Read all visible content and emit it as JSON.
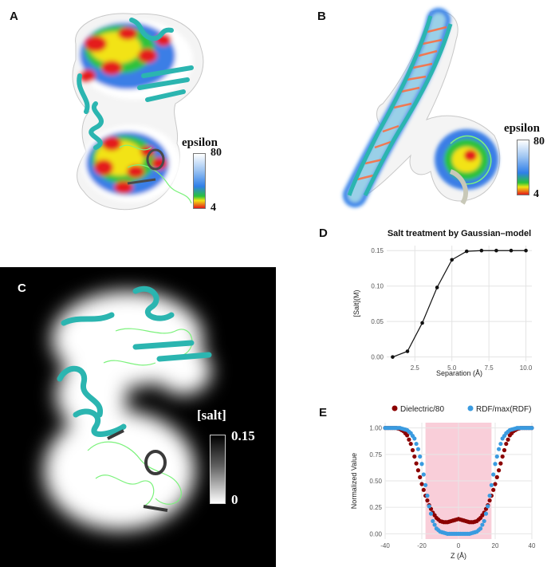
{
  "panel_labels": {
    "a": "A",
    "b": "B",
    "c": "C",
    "d": "D",
    "e": "E"
  },
  "colorbar_a": {
    "title": "epsilon",
    "max": "80",
    "min": "4"
  },
  "colorbar_b": {
    "title": "epsilon",
    "max": "80",
    "min": "4"
  },
  "colorbar_c": {
    "title": "[salt]",
    "max": "0.15",
    "min": "0"
  },
  "colors": {
    "ribbon": "#2bb5b0",
    "wire": "#7cf27c",
    "eps_high": "#ffffff",
    "eps_mid": "#2f7fe8",
    "eps_green": "#29c23a",
    "eps_yellow": "#f0e414",
    "eps_low": "#e41a1a",
    "dielectric": "#8b0000",
    "rdf": "#3a9be0",
    "band": "#f8c6d2"
  },
  "chart_data": [
    {
      "id": "D",
      "type": "line",
      "title": "Salt treatment by Gaussian–model",
      "xlabel": "Separation (Å)",
      "ylabel": "[Salt](M)",
      "x": [
        1,
        2,
        3,
        4,
        5,
        6,
        7,
        8,
        9,
        10
      ],
      "y": [
        0.0,
        0.008,
        0.048,
        0.098,
        0.137,
        0.149,
        0.15,
        0.15,
        0.15,
        0.15
      ],
      "xlim": [
        0.6,
        10.4
      ],
      "ylim": [
        -0.006,
        0.157
      ],
      "xticks": [
        "2.5",
        "5.0",
        "7.5",
        "10.0"
      ],
      "xtick_values": [
        2.5,
        5.0,
        7.5,
        10.0
      ],
      "yticks": [
        "0.00",
        "0.05",
        "0.10",
        "0.15"
      ],
      "ytick_values": [
        0.0,
        0.05,
        0.1,
        0.15
      ],
      "grid": true
    },
    {
      "id": "E",
      "type": "scatter",
      "xlabel": "Z (Å)",
      "ylabel": "Normalized Value",
      "xlim": [
        -40,
        40
      ],
      "ylim": [
        -0.05,
        1.05
      ],
      "xticks": [
        "-40",
        "-20",
        "0",
        "20",
        "40"
      ],
      "xtick_values": [
        -40,
        -20,
        0,
        20,
        40
      ],
      "yticks": [
        "0.00",
        "0.25",
        "0.50",
        "0.75",
        "1.00"
      ],
      "ytick_values": [
        0,
        0.25,
        0.5,
        0.75,
        1.0
      ],
      "shaded_region": [
        -18,
        18
      ],
      "grid": true,
      "legend_position": "top",
      "series": [
        {
          "name": "Dielectric/80",
          "x": [
            -40,
            -38,
            -36,
            -34,
            -32,
            -30,
            -28,
            -26,
            -24,
            -22,
            -20,
            -18,
            -16,
            -14,
            -12,
            -10,
            -8,
            -6,
            -4,
            -2,
            0,
            2,
            4,
            6,
            8,
            10,
            12,
            14,
            16,
            18,
            20,
            22,
            24,
            26,
            28,
            30,
            32,
            34,
            36,
            38,
            40
          ],
          "y": [
            1.0,
            1.0,
            1.0,
            1.0,
            0.99,
            0.97,
            0.93,
            0.85,
            0.73,
            0.6,
            0.47,
            0.36,
            0.27,
            0.2,
            0.15,
            0.12,
            0.11,
            0.11,
            0.12,
            0.13,
            0.14,
            0.13,
            0.12,
            0.11,
            0.11,
            0.12,
            0.15,
            0.2,
            0.27,
            0.36,
            0.47,
            0.6,
            0.73,
            0.85,
            0.93,
            0.97,
            0.99,
            1.0,
            1.0,
            1.0,
            1.0
          ]
        },
        {
          "name": "RDF/max(RDF)",
          "x": [
            -40,
            -38,
            -36,
            -34,
            -32,
            -30,
            -28,
            -26,
            -24,
            -22,
            -20,
            -18,
            -16,
            -14,
            -12,
            -10,
            -8,
            -6,
            -4,
            -2,
            0,
            2,
            4,
            6,
            8,
            10,
            12,
            14,
            16,
            18,
            20,
            22,
            24,
            26,
            28,
            30,
            32,
            34,
            36,
            38,
            40
          ],
          "y": [
            1.0,
            1.0,
            1.0,
            1.0,
            1.0,
            0.99,
            0.98,
            0.95,
            0.9,
            0.8,
            0.66,
            0.46,
            0.26,
            0.12,
            0.05,
            0.02,
            0.01,
            0.0,
            0.0,
            0.0,
            0.0,
            0.0,
            0.0,
            0.0,
            0.01,
            0.02,
            0.05,
            0.12,
            0.26,
            0.46,
            0.66,
            0.8,
            0.9,
            0.95,
            0.98,
            0.99,
            1.0,
            1.0,
            1.0,
            1.0,
            1.0
          ]
        }
      ]
    }
  ]
}
